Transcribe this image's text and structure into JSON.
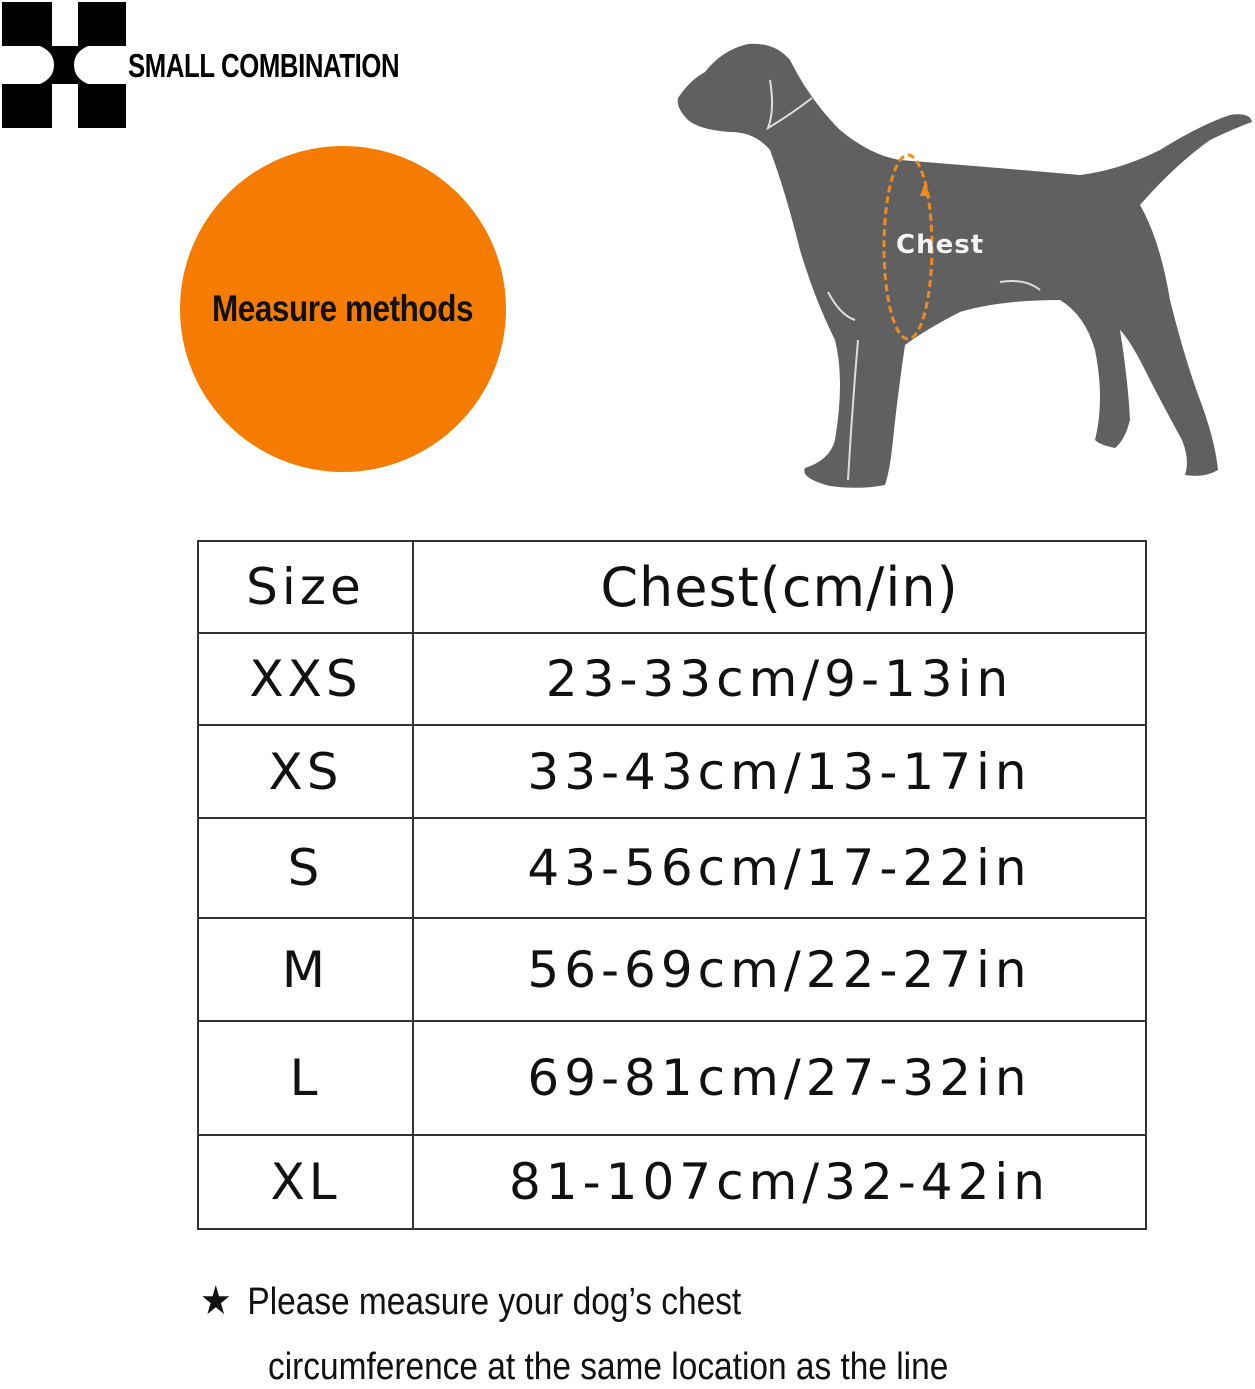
{
  "brand": {
    "name": "SMALL COMBINATION",
    "logo_icon": "four-squares-logo"
  },
  "badge": {
    "label": "Measure methods",
    "color": "#f57c00"
  },
  "illustration": {
    "label": "Chest",
    "dog_color": "#606060",
    "measure_color": "#f08a1e"
  },
  "table": {
    "headers": [
      "Size",
      "Chest(cm/in)"
    ],
    "rows": [
      {
        "size": "XXS",
        "chest": "23-33cm/9-13in"
      },
      {
        "size": "XS",
        "chest": "33-43cm/13-17in"
      },
      {
        "size": "S",
        "chest": "43-56cm/17-22in"
      },
      {
        "size": "M",
        "chest": "56-69cm/22-27in"
      },
      {
        "size": "L",
        "chest": "69-81cm/27-32in"
      },
      {
        "size": "XL",
        "chest": "81-107cm/32-42in"
      }
    ]
  },
  "note": {
    "icon": "star-icon",
    "line1": "Please measure your dog’s chest",
    "line2": "circumference at the same location as the line"
  }
}
